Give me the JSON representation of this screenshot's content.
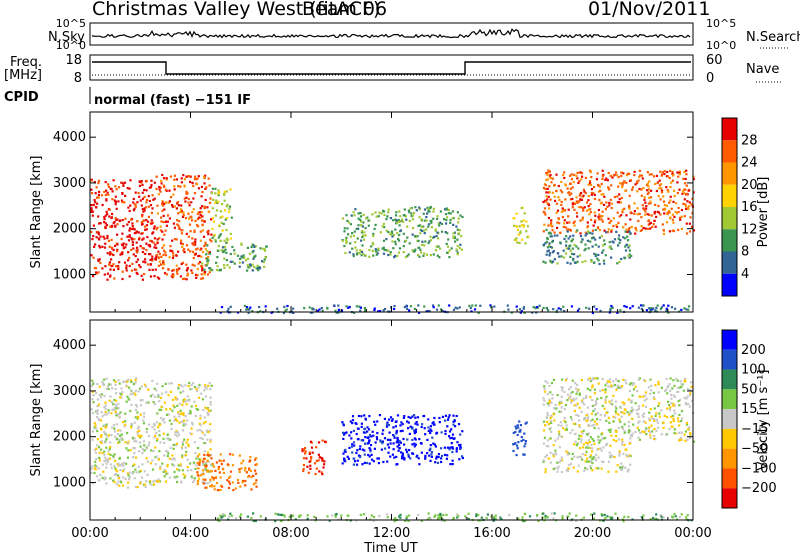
{
  "header": {
    "station": "Christmas Valley West (fitACF)",
    "beam": "Beam 06",
    "date": "01/Nov/2011",
    "mode": "normal (fast) −151 IF"
  },
  "side_labels": {
    "nsky": "N.Sky",
    "freq": "Freq.",
    "freq_unit": "[MHz]",
    "cpid": "CPID",
    "nsearch": "N.Search",
    "nave": "Nave"
  },
  "strip_ticks": {
    "nsky_top": "10^5",
    "nsky_bot": "10^0",
    "nsearch_top": "10^5",
    "nsearch_bot": "10^0",
    "freq_top": "18",
    "freq_bot": "8",
    "nave_top": "60",
    "nave_bot": "0"
  },
  "colorbars": {
    "power": {
      "label": "Power [dB]",
      "ticks": [
        "28",
        "24",
        "20",
        "16",
        "12",
        "8",
        "4"
      ],
      "colors": [
        "#e60000",
        "#ff5a00",
        "#ff9600",
        "#ffd200",
        "#a0c832",
        "#3c9650",
        "#326496",
        "#0000ff"
      ]
    },
    "velocity": {
      "label": "Velocity [m s⁻¹]",
      "ticks": [
        "200",
        "100",
        "50",
        "15",
        "−15",
        "−50",
        "−100",
        "−200"
      ],
      "colors": [
        "#0000ff",
        "#2050c8",
        "#2e8b57",
        "#78c846",
        "#c8c8c8",
        "#ffc800",
        "#ff9600",
        "#ff5000",
        "#e60000"
      ]
    }
  },
  "chart_data": [
    {
      "type": "heatmap",
      "panel": "power",
      "ylabel": "Slant Range [km]",
      "xlabel": "",
      "x_ticks": [
        "00:00",
        "04:00",
        "08:00",
        "12:00",
        "16:00",
        "20:00",
        "00:00"
      ],
      "y_ticks": [
        "1000",
        "2000",
        "3000",
        "4000"
      ],
      "xlim": [
        0,
        24
      ],
      "ylim": [
        180,
        4550
      ],
      "blobs": [
        {
          "x": [
            0.0,
            2.6
          ],
          "y": [
            900,
            3100
          ],
          "value": 30
        },
        {
          "x": [
            2.6,
            4.8
          ],
          "y": [
            900,
            3200
          ],
          "value": 27
        },
        {
          "x": [
            4.8,
            5.6
          ],
          "y": [
            1700,
            2900
          ],
          "value": 14
        },
        {
          "x": [
            4.4,
            7.0
          ],
          "y": [
            1100,
            1700
          ],
          "value": 11
        },
        {
          "x": [
            10.0,
            14.8
          ],
          "y": [
            1400,
            2500
          ],
          "value": 11
        },
        {
          "x": [
            16.8,
            17.4
          ],
          "y": [
            1700,
            2500
          ],
          "value": 16
        },
        {
          "x": [
            18.0,
            24.0
          ],
          "y": [
            1900,
            3300
          ],
          "value": 26
        },
        {
          "x": [
            18.0,
            21.5
          ],
          "y": [
            1250,
            2000
          ],
          "value": 9
        },
        {
          "x": [
            5.0,
            24.0
          ],
          "y": [
            180,
            350
          ],
          "value": 6
        }
      ]
    },
    {
      "type": "heatmap",
      "panel": "velocity",
      "ylabel": "Slant Range [km]",
      "xlabel": "Time UT",
      "x_ticks": [
        "00:00",
        "04:00",
        "08:00",
        "12:00",
        "16:00",
        "20:00",
        "00:00"
      ],
      "y_ticks": [
        "1000",
        "2000",
        "3000",
        "4000"
      ],
      "xlim": [
        0,
        24
      ],
      "ylim": [
        180,
        4550
      ],
      "blobs": [
        {
          "x": [
            0.0,
            2.6
          ],
          "y": [
            900,
            3300
          ],
          "value": 0
        },
        {
          "x": [
            2.6,
            4.8
          ],
          "y": [
            1000,
            3200
          ],
          "value": 0
        },
        {
          "x": [
            4.2,
            6.6
          ],
          "y": [
            850,
            1650
          ],
          "value": -110
        },
        {
          "x": [
            8.4,
            9.4
          ],
          "y": [
            1200,
            1950
          ],
          "value": -200
        },
        {
          "x": [
            10.0,
            14.8
          ],
          "y": [
            1400,
            2500
          ],
          "value": 220
        },
        {
          "x": [
            16.8,
            17.4
          ],
          "y": [
            1600,
            2400
          ],
          "value": 150
        },
        {
          "x": [
            18.0,
            24.0
          ],
          "y": [
            1900,
            3300
          ],
          "value": 0
        },
        {
          "x": [
            18.0,
            21.5
          ],
          "y": [
            1250,
            1900
          ],
          "value": 0
        },
        {
          "x": [
            5.0,
            24.0
          ],
          "y": [
            180,
            350
          ],
          "value": 40
        }
      ]
    }
  ]
}
